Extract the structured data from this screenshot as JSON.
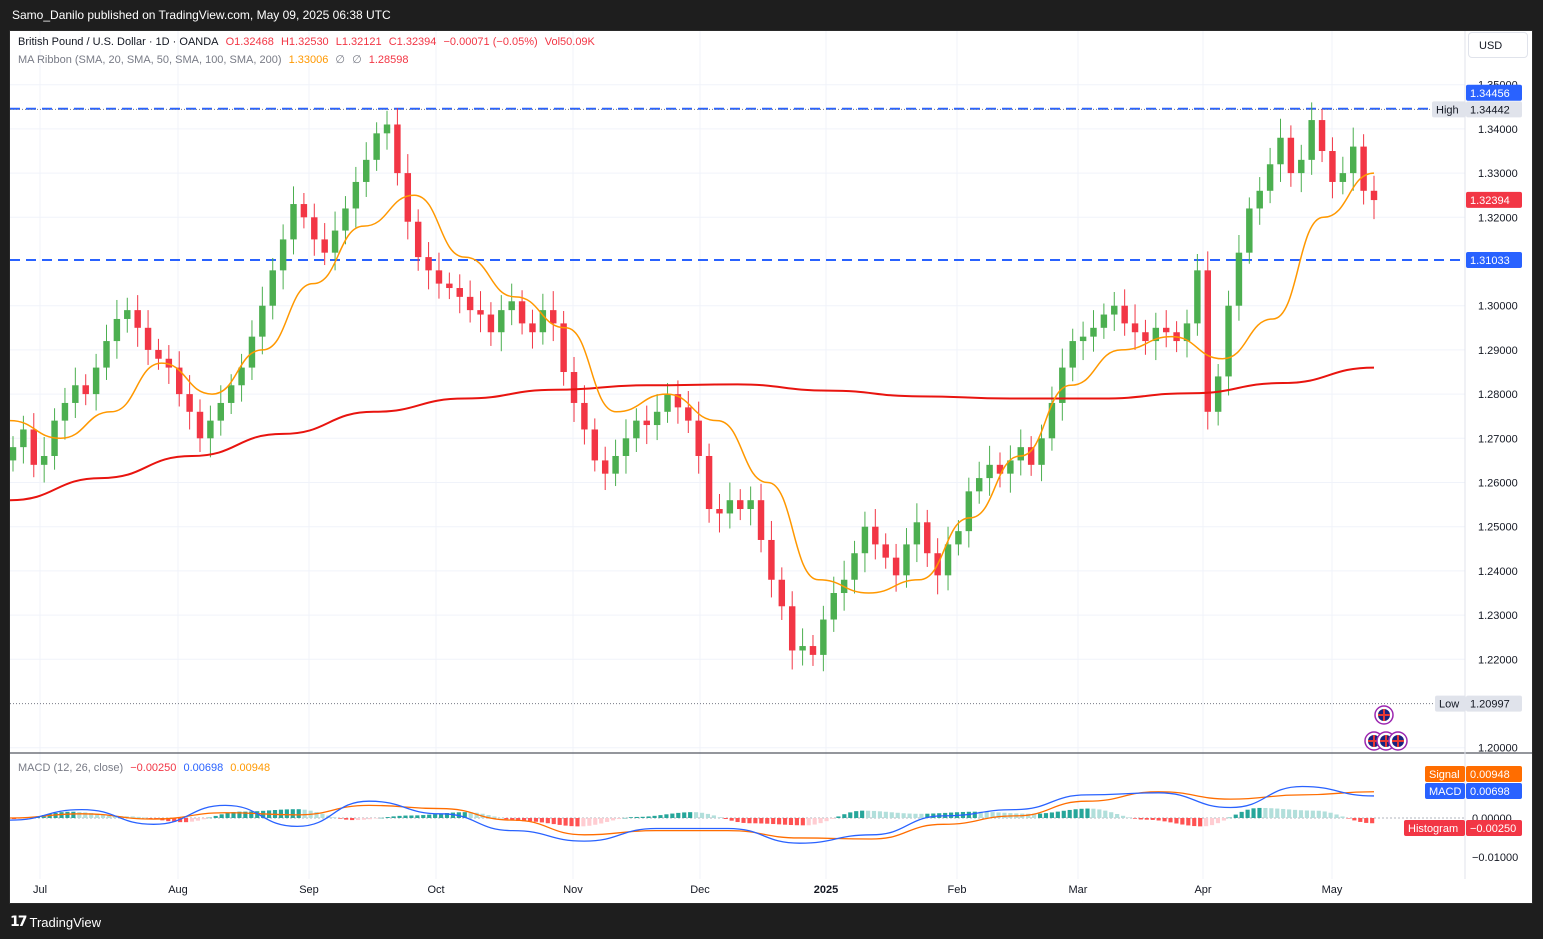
{
  "header": {
    "published": "Samo_Danilo published on TradingView.com, May 09, 2025 06:38 UTC"
  },
  "footer": {
    "brand": "TradingView"
  },
  "currency_button": "USD",
  "legend": {
    "symbol": "British Pound / U.S. Dollar · 1D · OANDA",
    "open": "O1.32468",
    "high": "H1.32530",
    "low": "L1.32121",
    "close": "C1.32394",
    "change": "−0.00071 (−0.05%)",
    "vol": "Vol50.09K",
    "ma_title": "MA Ribbon (SMA, 20, SMA, 50, SMA, 100, SMA, 200)",
    "ma20": "1.33006",
    "ma_empty1": "∅",
    "ma_empty2": "∅",
    "ma200": "1.28598",
    "macd_title": "MACD (12, 26, close)",
    "macd_hist": "−0.00250",
    "macd_line": "0.00698",
    "macd_signal": "0.00948"
  },
  "colors": {
    "up": "#26a69a",
    "up_bright": "#4caf50",
    "down": "#f23645",
    "ma20": "#ff9800",
    "ma200": "#e8140f",
    "level": "#2962ff",
    "macd": "#2962ff",
    "signal": "#ff6d00"
  },
  "price_labels": {
    "high_text": "High",
    "high_value": "1.34442",
    "low_text": "Low",
    "low_value": "1.20997",
    "res_top": "1.34456",
    "res_mid": "1.31033",
    "last": "1.32394",
    "signal_text": "Signal",
    "signal_value": "0.00948",
    "macd_text": "MACD",
    "macd_value": "0.00698",
    "hist_text": "Histogram",
    "hist_value": "−0.00250"
  },
  "chart_data": {
    "type": "candlestick",
    "symbol": "GBPUSD",
    "timeframe": "1D",
    "y_ticks": [
      "1.35000",
      "1.34000",
      "1.33000",
      "1.32000",
      "1.30000",
      "1.29000",
      "1.28000",
      "1.27000",
      "1.26000",
      "1.25000",
      "1.24000",
      "1.23000",
      "1.22000",
      "1.20000"
    ],
    "x_ticks": [
      "Jul",
      "Aug",
      "Sep",
      "Oct",
      "Nov",
      "Dec",
      "2025",
      "Feb",
      "Mar",
      "Apr",
      "May"
    ],
    "ylim": [
      1.1985,
      1.3505
    ],
    "levels": [
      1.34456,
      1.31033
    ],
    "high": 1.34442,
    "low": 1.20997,
    "last": 1.32394,
    "closes": [
      1.268,
      1.272,
      1.264,
      1.266,
      1.274,
      1.278,
      1.282,
      1.28,
      1.286,
      1.292,
      1.297,
      1.299,
      1.295,
      1.29,
      1.288,
      1.286,
      1.28,
      1.276,
      1.27,
      1.274,
      1.278,
      1.282,
      1.286,
      1.293,
      1.3,
      1.308,
      1.315,
      1.323,
      1.32,
      1.315,
      1.312,
      1.317,
      1.322,
      1.328,
      1.333,
      1.339,
      1.341,
      1.33,
      1.319,
      1.311,
      1.308,
      1.305,
      1.304,
      1.302,
      1.299,
      1.298,
      1.294,
      1.299,
      1.301,
      1.296,
      1.294,
      1.299,
      1.296,
      1.285,
      1.278,
      1.272,
      1.265,
      1.262,
      1.266,
      1.27,
      1.274,
      1.273,
      1.276,
      1.28,
      1.277,
      1.274,
      1.266,
      1.254,
      1.253,
      1.256,
      1.254,
      1.256,
      1.247,
      1.238,
      1.232,
      1.222,
      1.223,
      1.221,
      1.229,
      1.235,
      1.238,
      1.244,
      1.25,
      1.246,
      1.243,
      1.239,
      1.246,
      1.251,
      1.244,
      1.239,
      1.246,
      1.249,
      1.258,
      1.261,
      1.264,
      1.262,
      1.265,
      1.268,
      1.264,
      1.27,
      1.278,
      1.286,
      1.292,
      1.293,
      1.295,
      1.298,
      1.3,
      1.296,
      1.294,
      1.292,
      1.295,
      1.294,
      1.292,
      1.296,
      1.308,
      1.276,
      1.284,
      1.3,
      1.312,
      1.322,
      1.326,
      1.332,
      1.338,
      1.33,
      1.333,
      1.342,
      1.335,
      1.328,
      1.33,
      1.336,
      1.326,
      1.3239
    ],
    "ma20_anchor": [
      1.274,
      1.27,
      1.276,
      1.287,
      1.28,
      1.29,
      1.305,
      1.318,
      1.325,
      1.311,
      1.302,
      1.295,
      1.276,
      1.28,
      1.274,
      1.26,
      1.238,
      1.235,
      1.238,
      1.252,
      1.266,
      1.282,
      1.29,
      1.293,
      1.288,
      1.297,
      1.32,
      1.33
    ],
    "ma200_anchor": [
      1.256,
      1.261,
      1.266,
      1.271,
      1.276,
      1.279,
      1.281,
      1.282,
      1.2822,
      1.2808,
      1.2795,
      1.279,
      1.279,
      1.2802,
      1.2825,
      1.286
    ],
    "macd_hist_sample": [
      -0.0005,
      0.003,
      0.0008,
      -0.002,
      0.003,
      0.0042,
      -0.001,
      0.0012,
      0.0028,
      -0.0015,
      -0.004,
      0.0005,
      0.0028,
      -0.0025,
      -0.0035,
      0.0035,
      0.002,
      0.003,
      0.002,
      0.0045,
      -0.0008,
      -0.004,
      0.0048,
      0.0035,
      -0.0025
    ]
  }
}
